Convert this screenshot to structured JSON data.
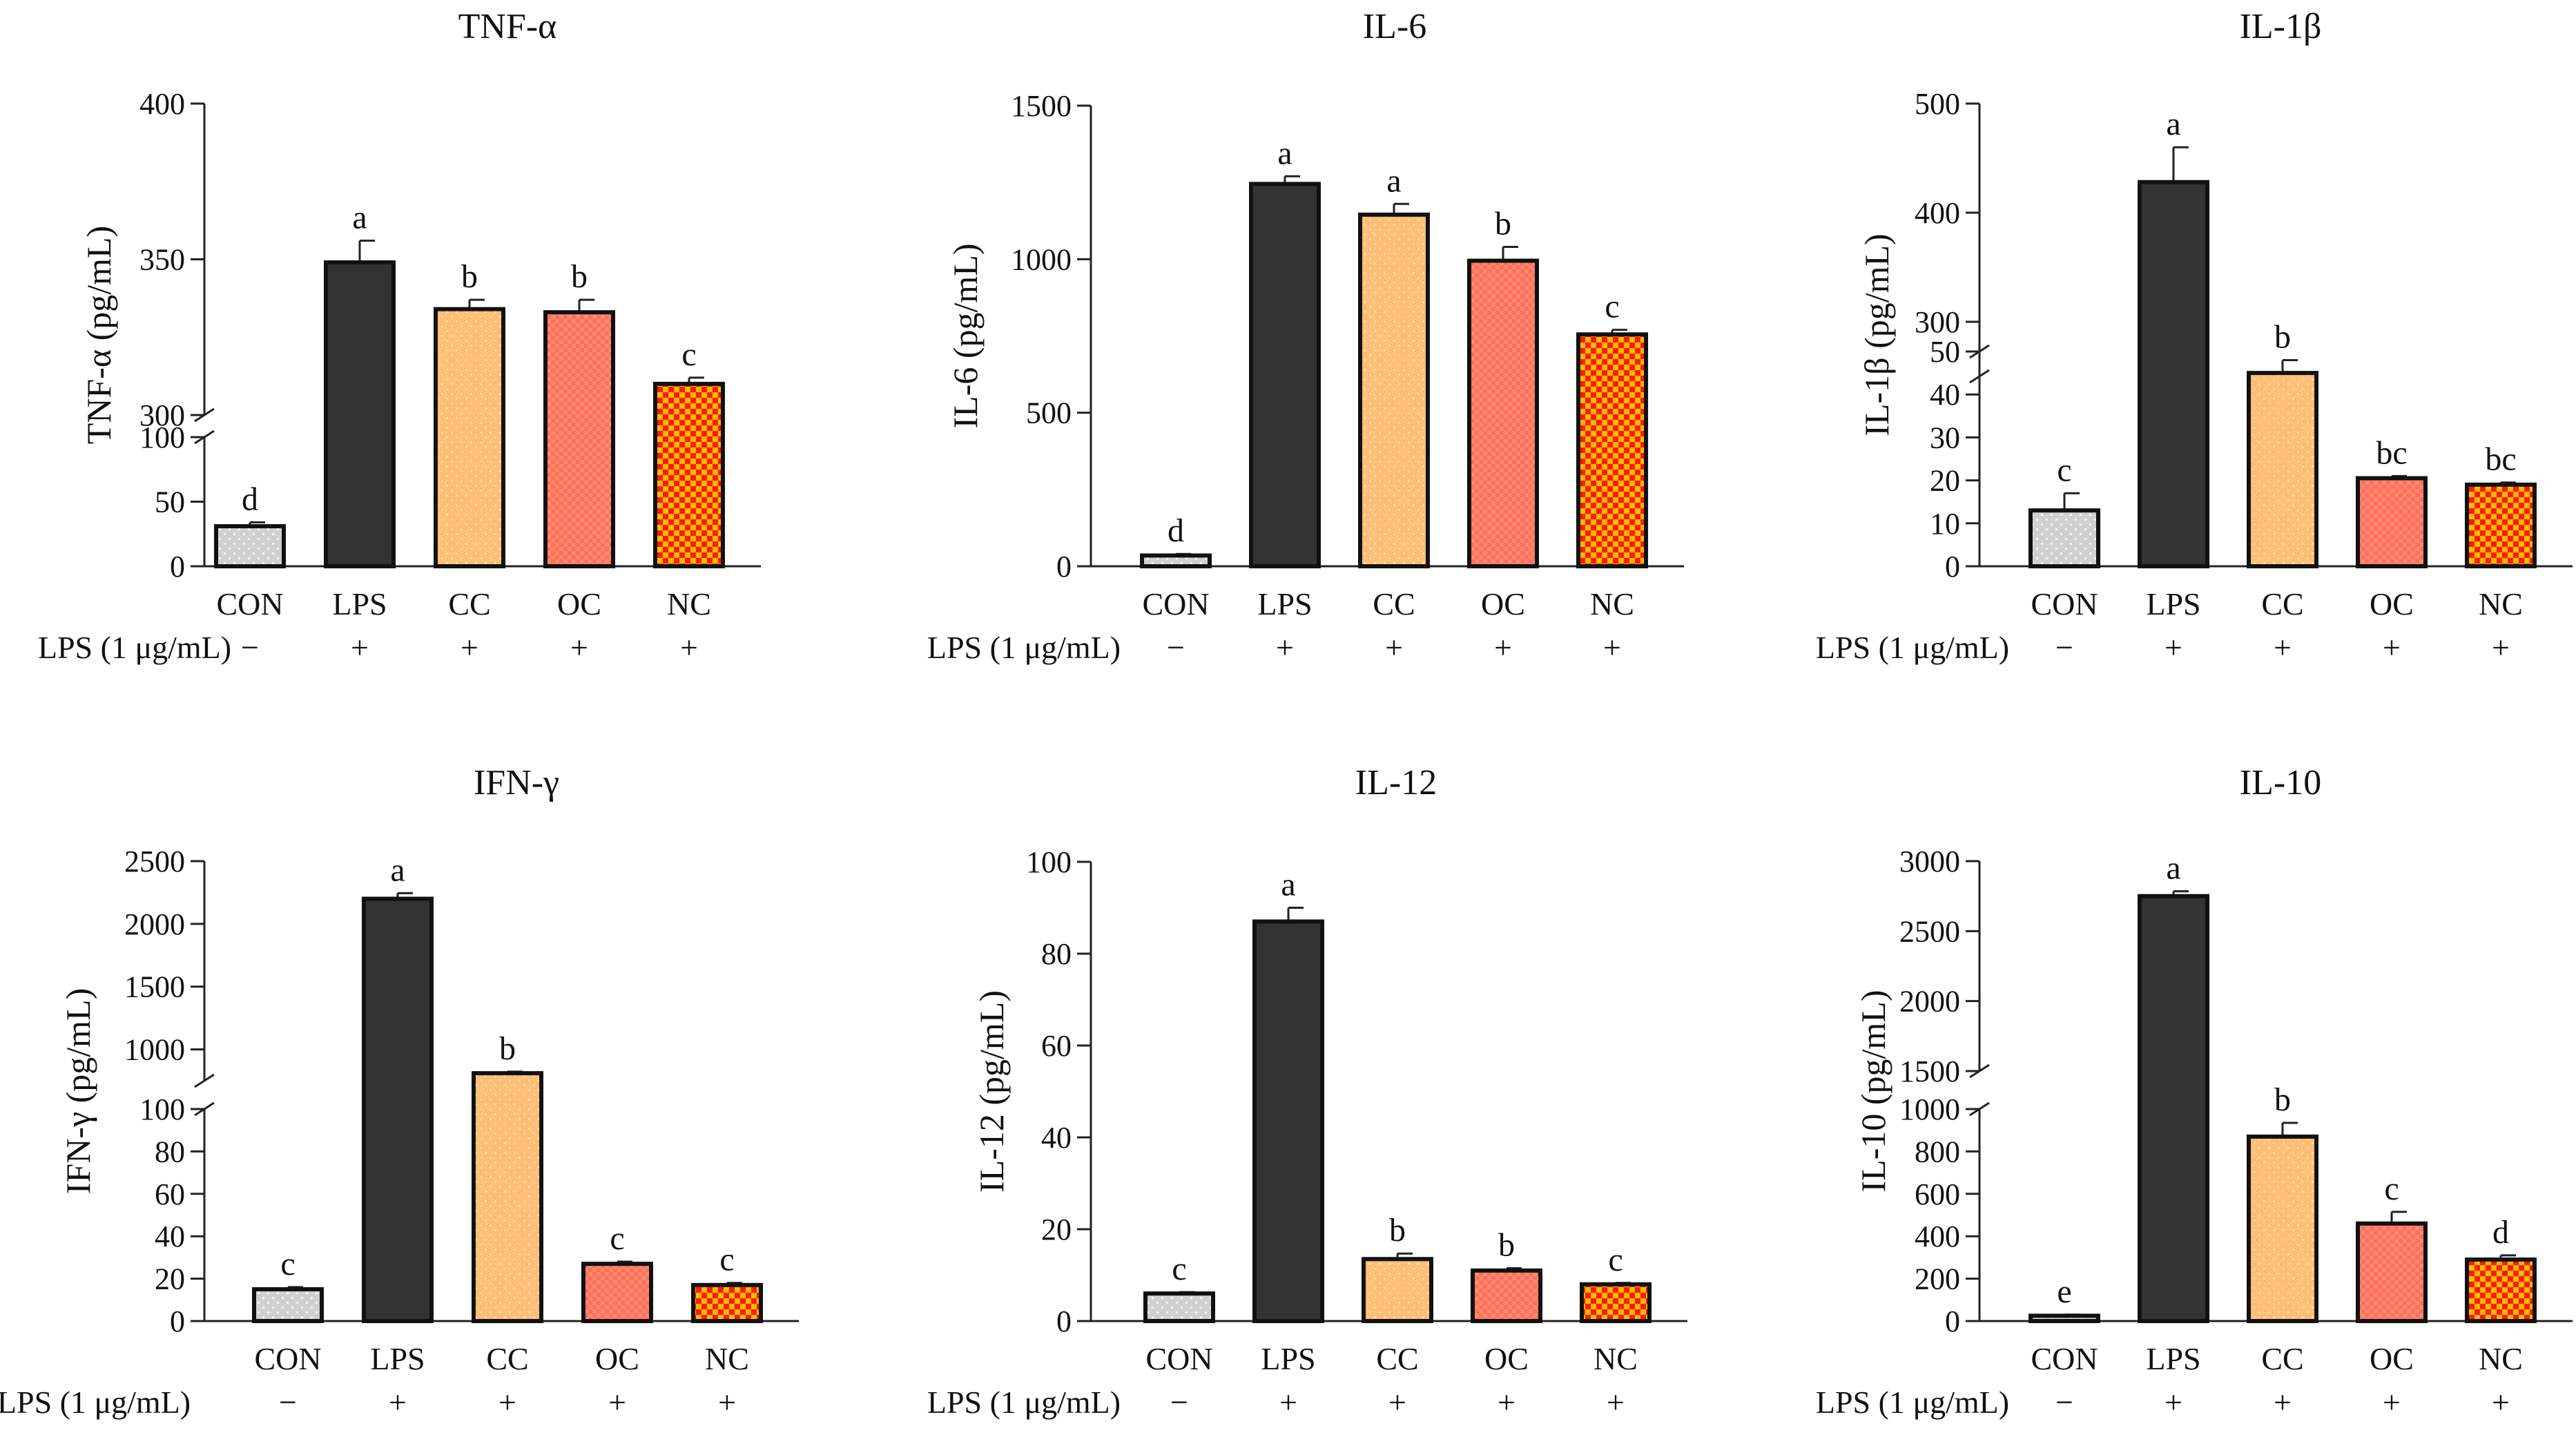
{
  "figure": {
    "row_label": "LPS (1 μg/mL)",
    "groups": [
      "CON",
      "LPS",
      "CC",
      "OC",
      "NC"
    ],
    "lps_marks": [
      "−",
      "+",
      "+",
      "+",
      "+"
    ],
    "group_colors": {
      "CON": "#d3d3d3",
      "LPS": "#333333",
      "CC": "#ffc078",
      "OC": "#ff7f66",
      "NC": "#ff2200"
    }
  },
  "chart_data": [
    {
      "type": "bar",
      "title": "TNF-α",
      "ylabel": "TNF-α (pg/mL)",
      "categories": [
        "CON",
        "LPS",
        "CC",
        "OC",
        "NC"
      ],
      "values": [
        31,
        349,
        334,
        333,
        310
      ],
      "errors": [
        3,
        7,
        3,
        4,
        2
      ],
      "letters": [
        "d",
        "a",
        "b",
        "b",
        "c"
      ],
      "axis_segments": [
        {
          "range": [
            0,
            100
          ],
          "ticks": [
            0,
            50,
            100
          ],
          "tick_labels": [
            "0",
            "50",
            "100"
          ]
        },
        {
          "range": [
            300,
            400
          ],
          "ticks": [
            300,
            350,
            400
          ],
          "tick_labels": [
            "300",
            "350",
            "400"
          ]
        }
      ]
    },
    {
      "type": "bar",
      "title": "IL-6",
      "ylabel": "IL-6 (pg/mL)",
      "categories": [
        "CON",
        "LPS",
        "CC",
        "OC",
        "NC"
      ],
      "values": [
        35,
        1245,
        1145,
        995,
        755
      ],
      "errors": [
        5,
        25,
        35,
        45,
        15
      ],
      "letters": [
        "d",
        "a",
        "a",
        "b",
        "c"
      ],
      "axis_segments": [
        {
          "range": [
            0,
            1500
          ],
          "ticks": [
            0,
            500,
            1000,
            1500
          ],
          "tick_labels": [
            "0",
            "500",
            "1000",
            "1500"
          ]
        }
      ]
    },
    {
      "type": "bar",
      "title": "IL-1β",
      "ylabel": "IL-1β (pg/mL)",
      "categories": [
        "CON",
        "LPS",
        "CC",
        "OC",
        "NC"
      ],
      "values": [
        13,
        428,
        45,
        20.5,
        19
      ],
      "errors": [
        4,
        32,
        3,
        0.5,
        0.5
      ],
      "letters": [
        "c",
        "a",
        "b",
        "bc",
        "bc"
      ],
      "axis_segments": [
        {
          "range": [
            0,
            50
          ],
          "ticks": [
            0,
            10,
            20,
            30,
            40,
            50
          ],
          "tick_labels": [
            "0",
            "10",
            "20",
            "30",
            "40",
            "50"
          ]
        },
        {
          "range": [
            250,
            500
          ],
          "ticks": [
            300,
            400,
            500
          ],
          "tick_labels": [
            "300",
            "400",
            "500"
          ]
        }
      ]
    },
    {
      "type": "bar",
      "title": "IFN-γ",
      "ylabel": "IFN-γ (pg/mL)",
      "categories": [
        "CON",
        "LPS",
        "CC",
        "OC",
        "NC"
      ],
      "values": [
        15,
        2200,
        810,
        27,
        17
      ],
      "errors": [
        1,
        45,
        12,
        1,
        1
      ],
      "letters": [
        "c",
        "a",
        "b",
        "c",
        "c"
      ],
      "axis_segments": [
        {
          "range": [
            0,
            100
          ],
          "ticks": [
            0,
            20,
            40,
            60,
            80,
            100
          ],
          "tick_labels": [
            "0",
            "20",
            "40",
            "60",
            "80",
            "100"
          ]
        },
        {
          "range": [
            750,
            2500
          ],
          "ticks": [
            1000,
            1500,
            2000,
            2500
          ],
          "tick_labels": [
            "1000",
            "1500",
            "2000",
            "2500"
          ]
        }
      ]
    },
    {
      "type": "bar",
      "title": "IL-12",
      "ylabel": "IL-12 (pg/mL)",
      "categories": [
        "CON",
        "LPS",
        "CC",
        "OC",
        "NC"
      ],
      "values": [
        6,
        87,
        13.5,
        11,
        8
      ],
      "errors": [
        0.3,
        3,
        1.2,
        0.5,
        0.3
      ],
      "letters": [
        "c",
        "a",
        "b",
        "b",
        "c"
      ],
      "axis_segments": [
        {
          "range": [
            0,
            100
          ],
          "ticks": [
            0,
            20,
            40,
            60,
            80,
            100
          ],
          "tick_labels": [
            "0",
            "20",
            "40",
            "60",
            "80",
            "100"
          ]
        }
      ]
    },
    {
      "type": "bar",
      "title": "IL-10",
      "ylabel": "IL-10 (pg/mL)",
      "categories": [
        "CON",
        "LPS",
        "CC",
        "OC",
        "NC"
      ],
      "values": [
        25,
        2750,
        870,
        460,
        290
      ],
      "errors": [
        5,
        35,
        65,
        55,
        20
      ],
      "letters": [
        "e",
        "a",
        "b",
        "c",
        "d"
      ],
      "axis_segments": [
        {
          "range": [
            0,
            1000
          ],
          "ticks": [
            0,
            200,
            400,
            600,
            800,
            1000
          ],
          "tick_labels": [
            "0",
            "200",
            "400",
            "600",
            "800",
            "1000"
          ]
        },
        {
          "range": [
            1500,
            3000
          ],
          "ticks": [
            1500,
            2000,
            2500,
            3000
          ],
          "tick_labels": [
            "1500",
            "2000",
            "2500",
            "3000"
          ]
        }
      ]
    }
  ]
}
